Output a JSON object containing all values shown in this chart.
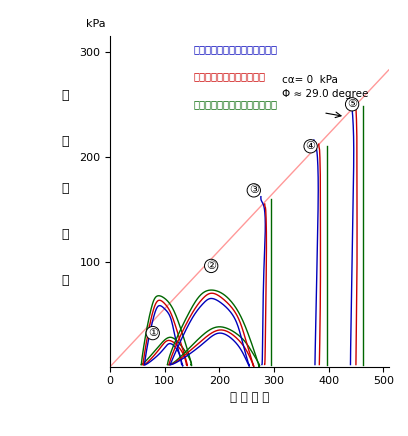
{
  "xlabel": "垂 直 応 力",
  "ylabel_chars": [
    "せ",
    "ん",
    "断",
    "応",
    "力"
  ],
  "xlabel_unit": "kPa",
  "xlim": [
    0,
    510
  ],
  "ylim": [
    0,
    315
  ],
  "xticks": [
    0,
    100,
    200,
    300,
    400,
    500
  ],
  "yticks": [
    100,
    200,
    300
  ],
  "phi_deg": 29.0,
  "c": 0,
  "legend_blue": "青線が反力板側重直応力による",
  "legend_red": "赤線が平均重直応力による",
  "legend_green": "緑線が加圧板側重直応力による",
  "ann_text1": "cα= 0  kPa",
  "ann_text2": "Φ ≈ 29.0 degree",
  "blue_color": "#0000bb",
  "red_color": "#cc0000",
  "green_color": "#006600",
  "fail_line_color": "#ff9999"
}
